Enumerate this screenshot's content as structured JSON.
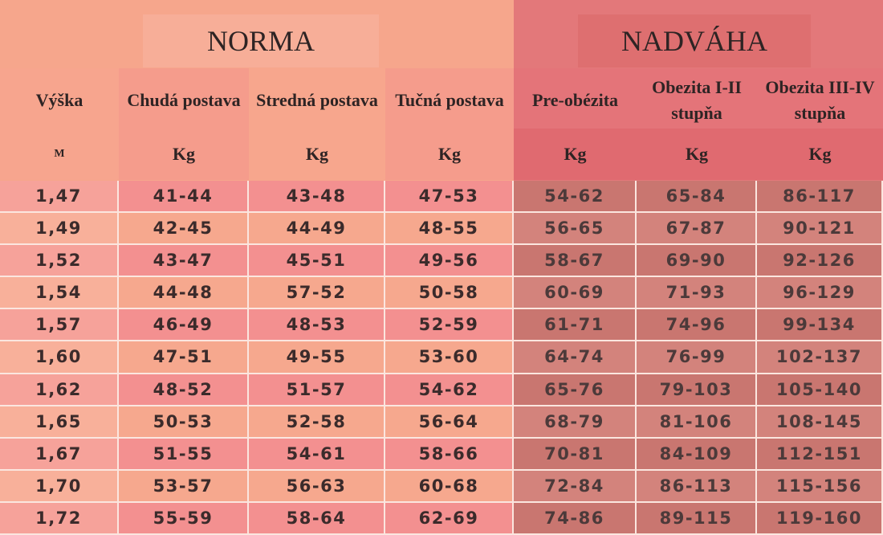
{
  "header": {
    "groups": [
      "NORMA",
      "NADVÁHA"
    ],
    "columns": [
      "Výška",
      "Chudá postava",
      "Stredná postava",
      "Tučná postava",
      "Pre-obézita",
      "Obezita I-II stupňa",
      "Obezita III-IV stupňa"
    ],
    "units": [
      "M",
      "Kg",
      "Kg",
      "Kg",
      "Kg",
      "Kg",
      "Kg"
    ]
  },
  "table": {
    "rows": [
      [
        "1,47",
        "41-44",
        "43-48",
        "47-53",
        "54-62",
        "65-84",
        "86-117"
      ],
      [
        "1,49",
        "42-45",
        "44-49",
        "48-55",
        "56-65",
        "67-87",
        "90-121"
      ],
      [
        "1,52",
        "43-47",
        "45-51",
        "49-56",
        "58-67",
        "69-90",
        "92-126"
      ],
      [
        "1,54",
        "44-48",
        "57-52",
        "50-58",
        "60-69",
        "71-93",
        "96-129"
      ],
      [
        "1,57",
        "46-49",
        "48-53",
        "52-59",
        "61-71",
        "74-96",
        "99-134"
      ],
      [
        "1,60",
        "47-51",
        "49-55",
        "53-60",
        "64-74",
        "76-99",
        "102-137"
      ],
      [
        "1,62",
        "48-52",
        "51-57",
        "54-62",
        "65-76",
        "79-103",
        "105-140"
      ],
      [
        "1,65",
        "50-53",
        "52-58",
        "56-64",
        "68-79",
        "81-106",
        "108-145"
      ],
      [
        "1,67",
        "51-55",
        "54-61",
        "58-66",
        "70-81",
        "84-109",
        "112-151"
      ],
      [
        "1,70",
        "53-57",
        "56-63",
        "60-68",
        "72-84",
        "86-113",
        "115-156"
      ],
      [
        "1,72",
        "55-59",
        "58-64",
        "62-69",
        "74-86",
        "89-115",
        "119-160"
      ]
    ]
  }
}
